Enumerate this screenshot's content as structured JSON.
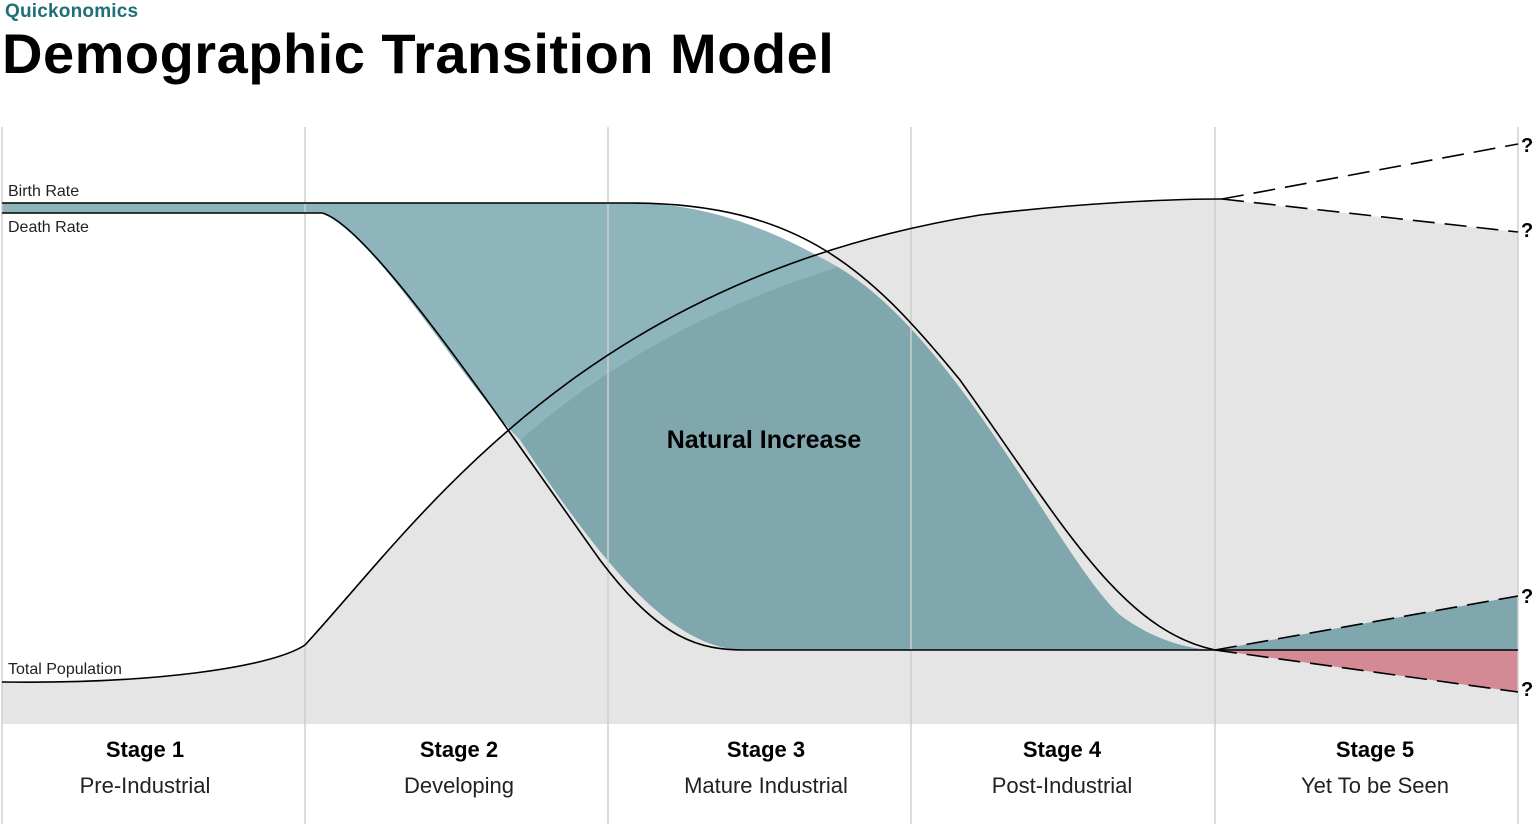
{
  "header": {
    "brand": "Quickonomics",
    "title": "Demographic Transition Model"
  },
  "labels": {
    "birth_rate": "Birth Rate",
    "death_rate": "Death Rate",
    "total_population": "Total Population",
    "natural_increase": "Natural Increase",
    "unknown_marker": "?"
  },
  "stages": [
    {
      "title": "Stage 1",
      "subtitle": "Pre-Industrial"
    },
    {
      "title": "Stage 2",
      "subtitle": "Developing"
    },
    {
      "title": "Stage 3",
      "subtitle": "Mature Industrial"
    },
    {
      "title": "Stage 4",
      "subtitle": "Post-Industrial"
    },
    {
      "title": "Stage 5",
      "subtitle": "Yet To be Seen"
    }
  ],
  "colors": {
    "brand": "#1f6f76",
    "natural_increase_fill": "#7fa7ad",
    "natural_increase_fill_light": "#8db5bb",
    "natural_decrease_fill": "#d48a95",
    "population_area": "#e5e5e5",
    "gridline": "#cfcfcf",
    "line": "#000000"
  }
}
